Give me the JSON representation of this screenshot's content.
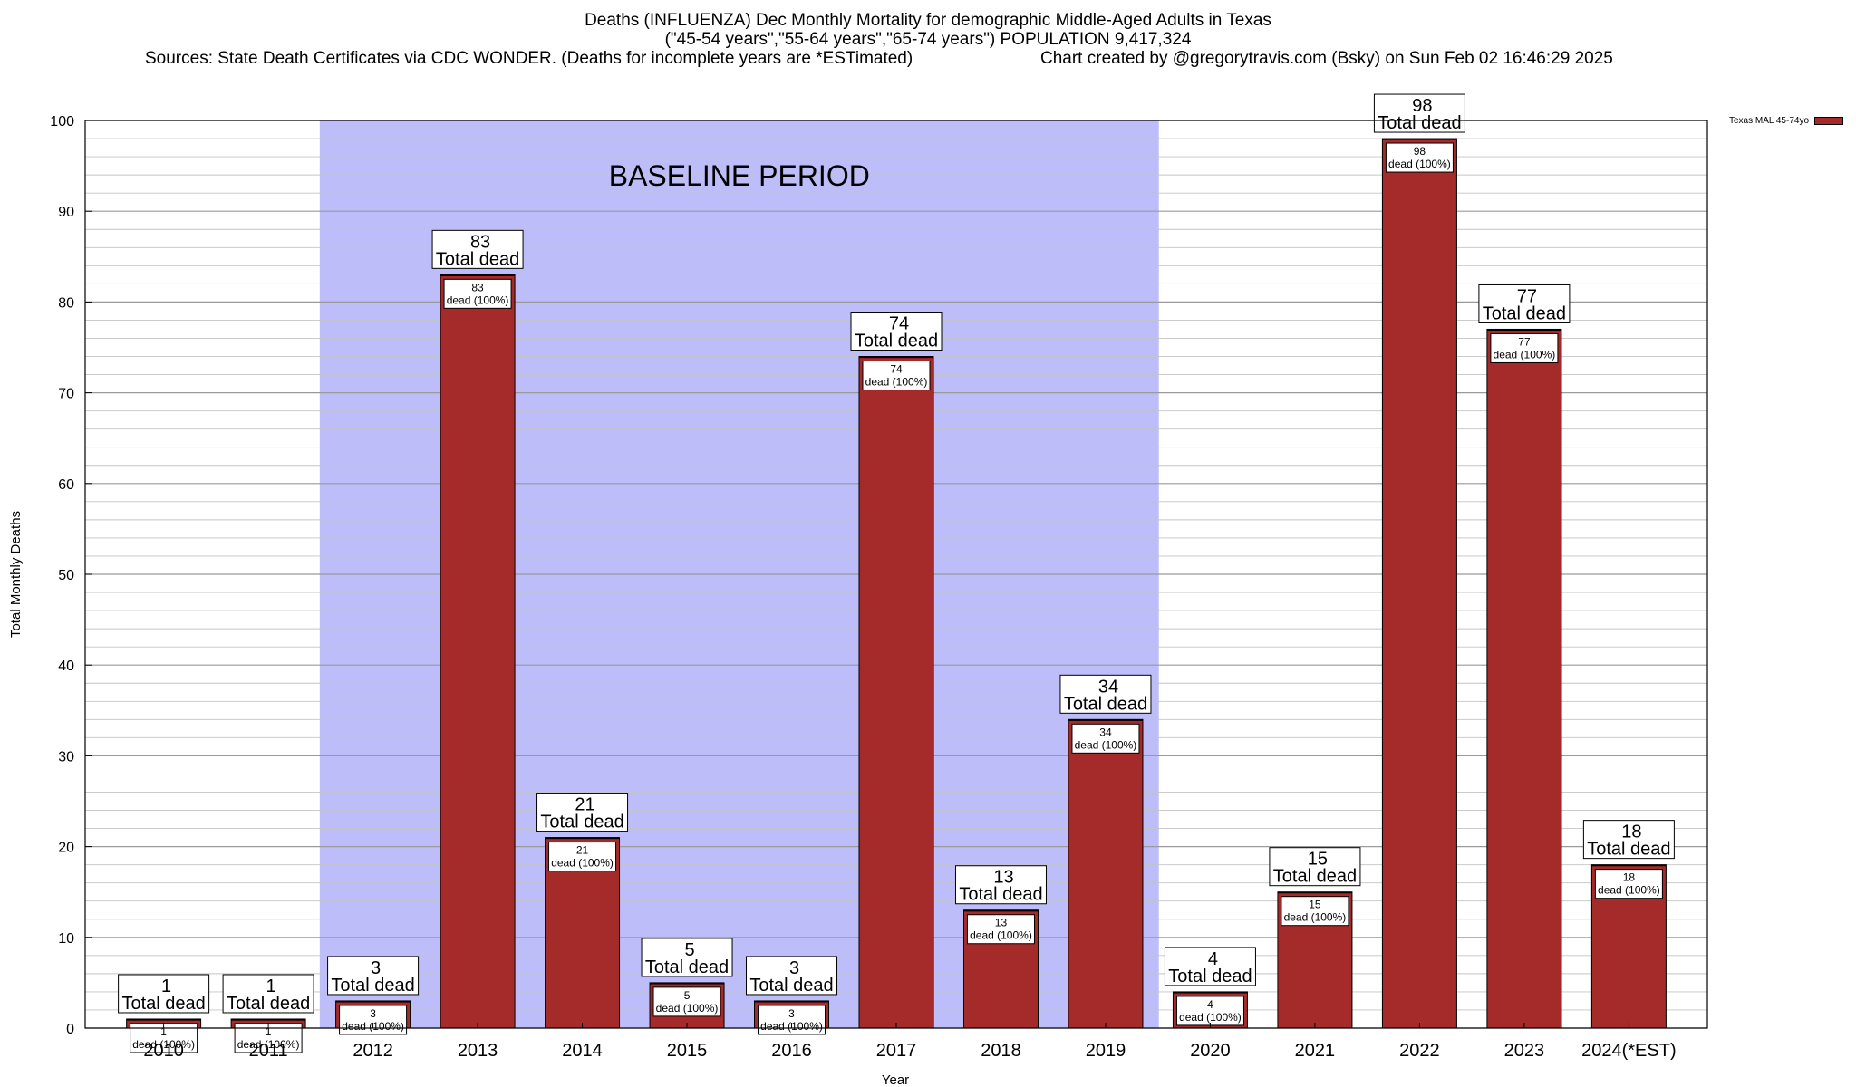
{
  "title": {
    "line1": "Deaths (INFLUENZA) Dec Monthly Mortality for demographic Middle-Aged Adults in Texas",
    "line2": "(\"45-54 years\",\"55-64 years\",\"65-74 years\") POPULATION 9,417,324",
    "line3_source": "Sources: State Death Certificates via CDC WONDER. (Deaths for incomplete years are *ESTimated)",
    "line3_credit": "Chart created by @gregorytravis.com (Bsky) on Sun Feb 02 16:46:29 2025"
  },
  "chart_data": {
    "type": "bar",
    "categories": [
      "2010",
      "2011",
      "2012",
      "2013",
      "2014",
      "2015",
      "2016",
      "2017",
      "2018",
      "2019",
      "2020",
      "2021",
      "2022",
      "2023",
      "2024(*EST)"
    ],
    "series": [
      {
        "name": "Texas MAL 45-74yo",
        "values": [
          1,
          1,
          3,
          83,
          21,
          5,
          3,
          74,
          13,
          34,
          4,
          15,
          98,
          77,
          18
        ]
      }
    ],
    "xlabel": "Year",
    "ylabel": "Total Monthly Deaths",
    "ylim": [
      0,
      100
    ],
    "yticks": [
      0,
      10,
      20,
      30,
      40,
      50,
      60,
      70,
      80,
      90,
      100
    ],
    "grid": true,
    "legend_position": "top-right",
    "bar_top_label_suffix": "Total dead",
    "bar_inner_label_suffix": "dead (100%)",
    "baseline": {
      "label": "BASELINE PERIOD",
      "from": "2012",
      "to": "2019",
      "color": "#bdbdfa"
    },
    "colors": {
      "bar": "#a52a2a",
      "bar_cap": "#a52a2a"
    }
  }
}
